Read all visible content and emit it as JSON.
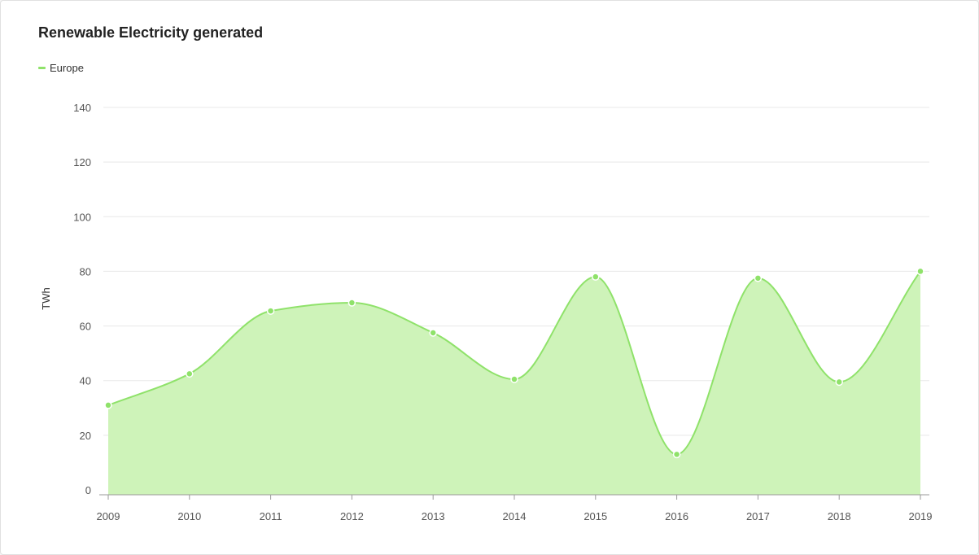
{
  "chart_data": {
    "type": "area",
    "title": "Renewable Electricity generated",
    "xlabel": "",
    "ylabel": "TWh",
    "x": [
      "2009",
      "2010",
      "2011",
      "2012",
      "2013",
      "2014",
      "2015",
      "2016",
      "2017",
      "2018",
      "2019"
    ],
    "series": [
      {
        "name": "Europe",
        "values": [
          31,
          42.5,
          65.5,
          68.5,
          57.5,
          40.5,
          78,
          13,
          77.5,
          39.5,
          80
        ],
        "color": "#8fe26a",
        "fill": "#cef3b9"
      }
    ],
    "yticks": [
      "0",
      "20",
      "40",
      "60",
      "80",
      "100",
      "120",
      "140"
    ],
    "ylim": [
      0,
      140
    ],
    "grid": true,
    "legend_position": "top-left",
    "smooth": true
  }
}
